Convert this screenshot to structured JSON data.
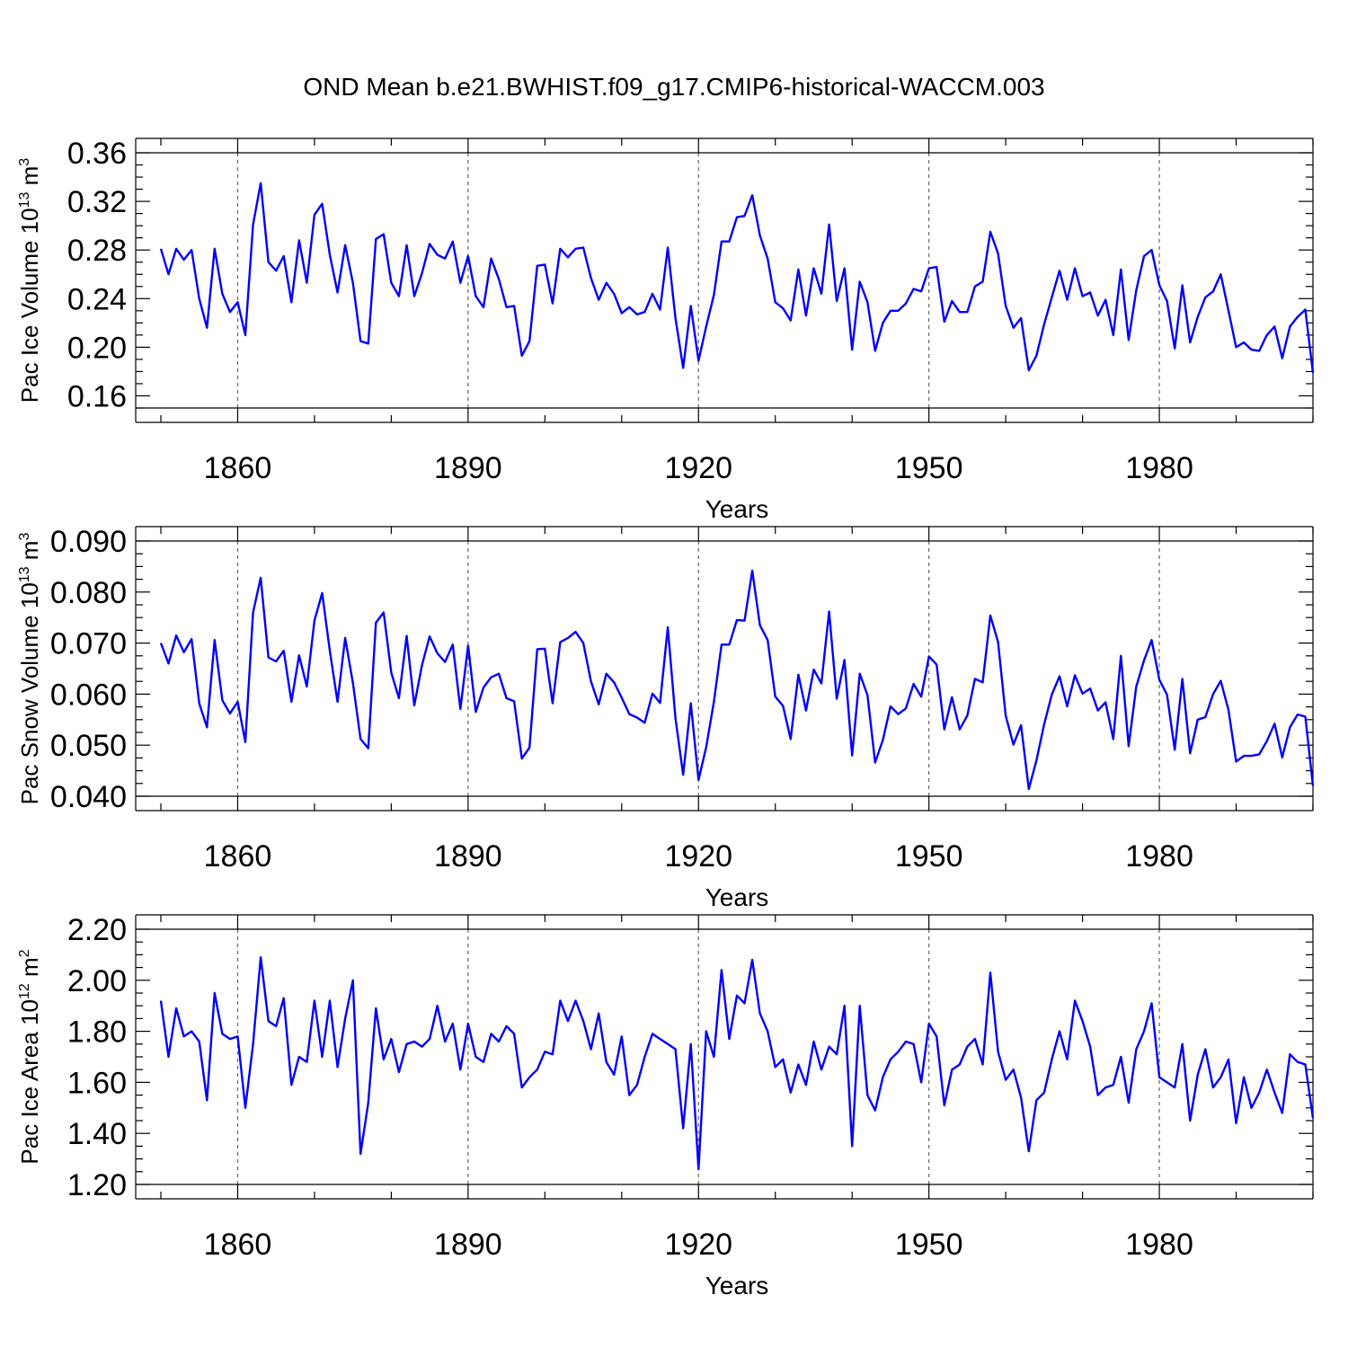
{
  "title": "OND Mean b.e21.BWHIST.f09_g17.CMIP6-historical-WACCM.003",
  "colors": {
    "line": "#0000ff",
    "axes": "#000000",
    "grid": "#666666"
  },
  "chart_data": [
    {
      "type": "line",
      "xlabel": "Years",
      "ylabel_main": "Pac Ice Volume 10",
      "ylabel_exp": "13",
      "ylabel_unit": " m",
      "ylabel_unit_exp": "3",
      "xlim": [
        1850,
        2000
      ],
      "ylim": [
        0.15,
        0.36
      ],
      "xticks": [
        1860,
        1890,
        1920,
        1950,
        1980
      ],
      "yticks": [
        "0.16",
        "0.20",
        "0.24",
        "0.28",
        "0.32",
        "0.36"
      ],
      "grid": "vertical dashed at major x ticks",
      "x": [
        1850,
        1851,
        1852,
        1853,
        1854,
        1855,
        1856,
        1857,
        1858,
        1859,
        1860,
        1861,
        1862,
        1863,
        1864,
        1865,
        1866,
        1867,
        1868,
        1869,
        1870,
        1871,
        1872,
        1873,
        1874,
        1875,
        1876,
        1877,
        1878,
        1879,
        1880,
        1881,
        1882,
        1883,
        1884,
        1885,
        1886,
        1887,
        1888,
        1889,
        1890,
        1891,
        1892,
        1893,
        1894,
        1895,
        1896,
        1897,
        1898,
        1899,
        1900,
        1901,
        1902,
        1903,
        1904,
        1905,
        1906,
        1907,
        1908,
        1909,
        1910,
        1911,
        1912,
        1913,
        1914,
        1915,
        1916,
        1917,
        1918,
        1919,
        1920,
        1921,
        1922,
        1923,
        1924,
        1925,
        1926,
        1927,
        1928,
        1929,
        1930,
        1931,
        1932,
        1933,
        1934,
        1935,
        1936,
        1937,
        1938,
        1939,
        1940,
        1941,
        1942,
        1943,
        1944,
        1945,
        1946,
        1947,
        1948,
        1949,
        1950,
        1951,
        1952,
        1953,
        1954,
        1955,
        1956,
        1957,
        1958,
        1959,
        1960,
        1961,
        1962,
        1963,
        1964,
        1965,
        1966,
        1967,
        1968,
        1969,
        1970,
        1971,
        1972,
        1973,
        1974,
        1975,
        1976,
        1977,
        1978,
        1979,
        1980,
        1981,
        1982,
        1983,
        1984,
        1985,
        1986,
        1987,
        1988,
        1989,
        1990,
        1991,
        1992,
        1993,
        1994,
        1995,
        1996,
        1997,
        1998,
        1999,
        2000
      ],
      "values": [
        0.281,
        0.26,
        0.281,
        0.272,
        0.28,
        0.24,
        0.216,
        0.281,
        0.244,
        0.229,
        0.237,
        0.21,
        0.301,
        0.335,
        0.27,
        0.263,
        0.275,
        0.237,
        0.288,
        0.253,
        0.309,
        0.318,
        0.276,
        0.245,
        0.284,
        0.253,
        0.205,
        0.203,
        0.289,
        0.293,
        0.253,
        0.242,
        0.284,
        0.242,
        0.261,
        0.285,
        0.276,
        0.273,
        0.287,
        0.253,
        0.275,
        0.242,
        0.233,
        0.273,
        0.256,
        0.233,
        0.234,
        0.193,
        0.205,
        0.267,
        0.268,
        0.236,
        0.281,
        0.274,
        0.281,
        0.282,
        0.257,
        0.239,
        0.253,
        0.244,
        0.228,
        0.233,
        0.227,
        0.229,
        0.244,
        0.231,
        0.282,
        0.224,
        0.183,
        0.234,
        0.189,
        0.217,
        0.243,
        0.287,
        0.287,
        0.307,
        0.308,
        0.325,
        0.292,
        0.273,
        0.237,
        0.232,
        0.222,
        0.264,
        0.226,
        0.265,
        0.244,
        0.301,
        0.238,
        0.265,
        0.198,
        0.254,
        0.237,
        0.197,
        0.22,
        0.23,
        0.23,
        0.236,
        0.248,
        0.246,
        0.265,
        0.266,
        0.221,
        0.238,
        0.229,
        0.229,
        0.25,
        0.254,
        0.295,
        0.277,
        0.234,
        0.216,
        0.224,
        0.181,
        0.193,
        0.219,
        0.241,
        0.263,
        0.239,
        0.265,
        0.242,
        0.245,
        0.226,
        0.239,
        0.21,
        0.264,
        0.206,
        0.247,
        0.275,
        0.28,
        0.251,
        0.238,
        0.199,
        0.251,
        0.204,
        0.225,
        0.241,
        0.246,
        0.26,
        0.23,
        0.2,
        0.204,
        0.198,
        0.197,
        0.21,
        0.217,
        0.191,
        0.217,
        0.225,
        0.231,
        0.179
      ]
    },
    {
      "type": "line",
      "xlabel": "Years",
      "ylabel_main": "Pac Snow Volume 10",
      "ylabel_exp": "13",
      "ylabel_unit": " m",
      "ylabel_unit_exp": "3",
      "xlim": [
        1850,
        2000
      ],
      "ylim": [
        0.04,
        0.09
      ],
      "xticks": [
        1860,
        1890,
        1920,
        1950,
        1980
      ],
      "yticks": [
        "0.040",
        "0.050",
        "0.060",
        "0.070",
        "0.080",
        "0.090"
      ],
      "grid": "vertical dashed at major x ticks",
      "x": [
        1850,
        1851,
        1852,
        1853,
        1854,
        1855,
        1856,
        1857,
        1858,
        1859,
        1860,
        1861,
        1862,
        1863,
        1864,
        1865,
        1866,
        1867,
        1868,
        1869,
        1870,
        1871,
        1872,
        1873,
        1874,
        1875,
        1876,
        1877,
        1878,
        1879,
        1880,
        1881,
        1882,
        1883,
        1884,
        1885,
        1886,
        1887,
        1888,
        1889,
        1890,
        1891,
        1892,
        1893,
        1894,
        1895,
        1896,
        1897,
        1898,
        1899,
        1900,
        1901,
        1902,
        1903,
        1904,
        1905,
        1906,
        1907,
        1908,
        1909,
        1910,
        1911,
        1912,
        1913,
        1914,
        1915,
        1916,
        1917,
        1918,
        1919,
        1920,
        1921,
        1922,
        1923,
        1924,
        1925,
        1926,
        1927,
        1928,
        1929,
        1930,
        1931,
        1932,
        1933,
        1934,
        1935,
        1936,
        1937,
        1938,
        1939,
        1940,
        1941,
        1942,
        1943,
        1944,
        1945,
        1946,
        1947,
        1948,
        1949,
        1950,
        1951,
        1952,
        1953,
        1954,
        1955,
        1956,
        1957,
        1958,
        1959,
        1960,
        1961,
        1962,
        1963,
        1964,
        1965,
        1966,
        1967,
        1968,
        1969,
        1970,
        1971,
        1972,
        1973,
        1974,
        1975,
        1976,
        1977,
        1978,
        1979,
        1980,
        1981,
        1982,
        1983,
        1984,
        1985,
        1986,
        1987,
        1988,
        1989,
        1990,
        1991,
        1992,
        1993,
        1994,
        1995,
        1996,
        1997,
        1998,
        1999,
        2000
      ],
      "values": [
        0.07,
        0.066,
        0.0715,
        0.0682,
        0.0708,
        0.0582,
        0.0535,
        0.0706,
        0.0588,
        0.0562,
        0.0585,
        0.0506,
        0.076,
        0.0828,
        0.0672,
        0.0664,
        0.0685,
        0.0585,
        0.0676,
        0.0615,
        0.0744,
        0.0798,
        0.0685,
        0.0585,
        0.071,
        0.0622,
        0.0512,
        0.0494,
        0.074,
        0.076,
        0.0642,
        0.0592,
        0.0714,
        0.0578,
        0.0657,
        0.0713,
        0.068,
        0.0663,
        0.0697,
        0.0571,
        0.0695,
        0.0565,
        0.0613,
        0.0633,
        0.064,
        0.0592,
        0.0586,
        0.0474,
        0.0495,
        0.0688,
        0.0689,
        0.0582,
        0.0702,
        0.071,
        0.0722,
        0.07,
        0.0625,
        0.058,
        0.064,
        0.0623,
        0.0593,
        0.0561,
        0.0554,
        0.0544,
        0.0601,
        0.0583,
        0.0731,
        0.0553,
        0.0442,
        0.0582,
        0.0432,
        0.0496,
        0.0585,
        0.0697,
        0.0697,
        0.0745,
        0.0744,
        0.0842,
        0.0735,
        0.0706,
        0.0595,
        0.0577,
        0.0512,
        0.0638,
        0.0568,
        0.0648,
        0.0621,
        0.0762,
        0.0591,
        0.0667,
        0.048,
        0.064,
        0.0598,
        0.0466,
        0.051,
        0.0576,
        0.0561,
        0.0572,
        0.062,
        0.0595,
        0.0674,
        0.0658,
        0.0531,
        0.0594,
        0.0531,
        0.0558,
        0.063,
        0.0623,
        0.0754,
        0.0702,
        0.0558,
        0.0501,
        0.0539,
        0.0414,
        0.047,
        0.0541,
        0.0599,
        0.0635,
        0.0576,
        0.0637,
        0.0601,
        0.0611,
        0.0568,
        0.0584,
        0.0512,
        0.0675,
        0.0498,
        0.0615,
        0.0666,
        0.0706,
        0.0628,
        0.0599,
        0.0491,
        0.063,
        0.0484,
        0.055,
        0.0555,
        0.06,
        0.0626,
        0.0569,
        0.0468,
        0.0479,
        0.0479,
        0.0482,
        0.0508,
        0.0542,
        0.0476,
        0.0535,
        0.056,
        0.0556,
        0.042
      ]
    },
    {
      "type": "line",
      "xlabel": "Years",
      "ylabel_main": "Pac Ice Area 10",
      "ylabel_exp": "12",
      "ylabel_unit": " m",
      "ylabel_unit_exp": "2",
      "xlim": [
        1850,
        2000
      ],
      "ylim": [
        1.2,
        2.2
      ],
      "xticks": [
        1860,
        1890,
        1920,
        1950,
        1980
      ],
      "yticks": [
        "1.20",
        "1.40",
        "1.60",
        "1.80",
        "2.00",
        "2.20"
      ],
      "grid": "vertical dashed at major x ticks",
      "x": [
        1850,
        1851,
        1852,
        1853,
        1854,
        1855,
        1856,
        1857,
        1858,
        1859,
        1860,
        1861,
        1862,
        1863,
        1864,
        1865,
        1866,
        1867,
        1868,
        1869,
        1870,
        1871,
        1872,
        1873,
        1874,
        1875,
        1876,
        1877,
        1878,
        1879,
        1880,
        1881,
        1882,
        1883,
        1884,
        1885,
        1886,
        1887,
        1888,
        1889,
        1890,
        1891,
        1892,
        1893,
        1894,
        1895,
        1896,
        1897,
        1898,
        1899,
        1900,
        1901,
        1902,
        1903,
        1904,
        1905,
        1906,
        1907,
        1908,
        1909,
        1910,
        1911,
        1912,
        1913,
        1914,
        1915,
        1916,
        1917,
        1918,
        1919,
        1920,
        1921,
        1922,
        1923,
        1924,
        1925,
        1926,
        1927,
        1928,
        1929,
        1930,
        1931,
        1932,
        1933,
        1934,
        1935,
        1936,
        1937,
        1938,
        1939,
        1940,
        1941,
        1942,
        1943,
        1944,
        1945,
        1946,
        1947,
        1948,
        1949,
        1950,
        1951,
        1952,
        1953,
        1954,
        1955,
        1956,
        1957,
        1958,
        1959,
        1960,
        1961,
        1962,
        1963,
        1964,
        1965,
        1966,
        1967,
        1968,
        1969,
        1970,
        1971,
        1972,
        1973,
        1974,
        1975,
        1976,
        1977,
        1978,
        1979,
        1980,
        1981,
        1982,
        1983,
        1984,
        1985,
        1986,
        1987,
        1988,
        1989,
        1990,
        1991,
        1992,
        1993,
        1994,
        1995,
        1996,
        1997,
        1998,
        1999,
        2000
      ],
      "values": [
        1.92,
        1.7,
        1.89,
        1.78,
        1.8,
        1.76,
        1.53,
        1.95,
        1.79,
        1.77,
        1.78,
        1.5,
        1.75,
        2.09,
        1.84,
        1.82,
        1.93,
        1.59,
        1.7,
        1.68,
        1.92,
        1.7,
        1.92,
        1.66,
        1.85,
        2.0,
        1.32,
        1.52,
        1.89,
        1.69,
        1.77,
        1.64,
        1.75,
        1.76,
        1.74,
        1.77,
        1.9,
        1.76,
        1.83,
        1.65,
        1.83,
        1.7,
        1.68,
        1.79,
        1.76,
        1.82,
        1.79,
        1.58,
        1.62,
        1.65,
        1.72,
        1.71,
        1.92,
        1.84,
        1.92,
        1.84,
        1.73,
        1.87,
        1.68,
        1.63,
        1.78,
        1.55,
        1.59,
        1.7,
        1.79,
        1.77,
        1.75,
        1.73,
        1.42,
        1.75,
        1.26,
        1.8,
        1.7,
        2.04,
        1.77,
        1.94,
        1.91,
        2.08,
        1.87,
        1.8,
        1.66,
        1.69,
        1.56,
        1.67,
        1.59,
        1.76,
        1.65,
        1.74,
        1.71,
        1.9,
        1.35,
        1.9,
        1.55,
        1.49,
        1.62,
        1.69,
        1.72,
        1.76,
        1.75,
        1.6,
        1.83,
        1.78,
        1.51,
        1.65,
        1.67,
        1.74,
        1.77,
        1.67,
        2.03,
        1.72,
        1.61,
        1.65,
        1.54,
        1.33,
        1.53,
        1.56,
        1.69,
        1.8,
        1.69,
        1.92,
        1.84,
        1.74,
        1.55,
        1.58,
        1.59,
        1.7,
        1.52,
        1.73,
        1.8,
        1.91,
        1.62,
        1.6,
        1.58,
        1.75,
        1.45,
        1.63,
        1.73,
        1.58,
        1.62,
        1.69,
        1.44,
        1.62,
        1.5,
        1.56,
        1.65,
        1.56,
        1.48,
        1.71,
        1.68,
        1.67,
        1.46
      ]
    }
  ]
}
